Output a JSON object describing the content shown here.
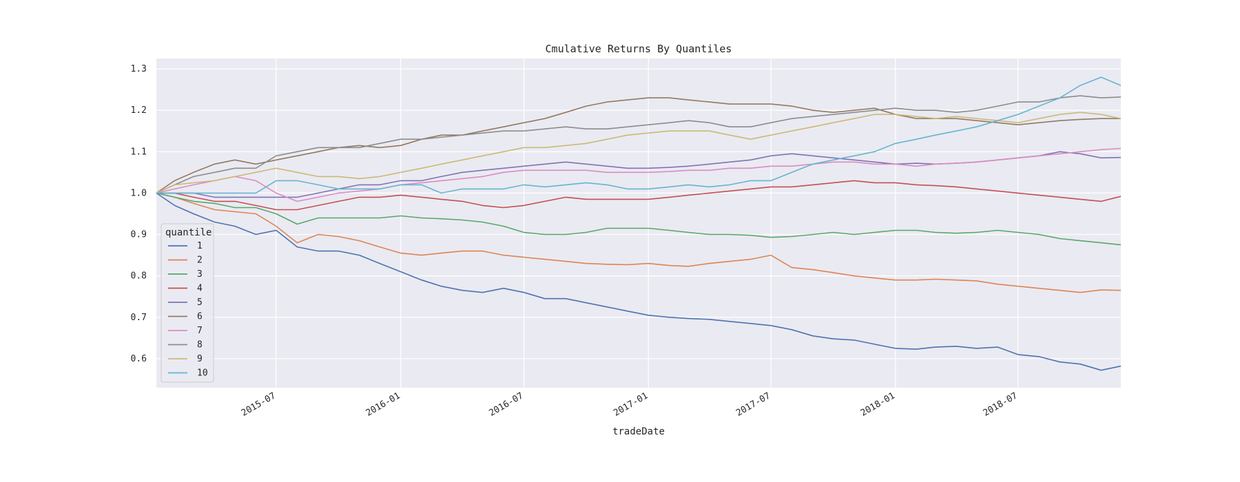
{
  "chart_data": {
    "type": "line",
    "title": "Cmulative Returns By Quantiles",
    "xlabel": "tradeDate",
    "ylabel": "",
    "ylim": [
      0.53,
      1.325
    ],
    "xlim": [
      "2015-01-05",
      "2018-11-30"
    ],
    "grid": true,
    "legend_title": "quantile",
    "legend_position": "lower-left",
    "x_ticks": [
      "2015-07",
      "2016-01",
      "2016-07",
      "2017-01",
      "2017-07",
      "2018-01",
      "2018-07"
    ],
    "y_ticks": [
      "0.6",
      "0.7",
      "0.8",
      "0.9",
      "1.0",
      "1.1",
      "1.2",
      "1.3"
    ],
    "x": [
      "2015-01-05",
      "2015-02-01",
      "2015-03-01",
      "2015-04-01",
      "2015-05-01",
      "2015-06-01",
      "2015-07-01",
      "2015-08-01",
      "2015-09-01",
      "2015-10-01",
      "2015-11-01",
      "2015-12-01",
      "2016-01-01",
      "2016-02-01",
      "2016-03-01",
      "2016-04-01",
      "2016-05-01",
      "2016-06-01",
      "2016-07-01",
      "2016-08-01",
      "2016-09-01",
      "2016-10-01",
      "2016-11-01",
      "2016-12-01",
      "2017-01-01",
      "2017-02-01",
      "2017-03-01",
      "2017-04-01",
      "2017-05-01",
      "2017-06-01",
      "2017-07-01",
      "2017-08-01",
      "2017-09-01",
      "2017-10-01",
      "2017-11-01",
      "2017-12-01",
      "2018-01-01",
      "2018-02-01",
      "2018-03-01",
      "2018-04-01",
      "2018-05-01",
      "2018-06-01",
      "2018-07-01",
      "2018-08-01",
      "2018-09-01",
      "2018-10-01",
      "2018-11-01",
      "2018-11-30"
    ],
    "series": [
      {
        "name": "1",
        "color": "#4c72b0",
        "values": [
          1.0,
          0.97,
          0.95,
          0.93,
          0.92,
          0.9,
          0.91,
          0.87,
          0.86,
          0.86,
          0.85,
          0.83,
          0.81,
          0.79,
          0.775,
          0.765,
          0.76,
          0.77,
          0.76,
          0.745,
          0.745,
          0.735,
          0.725,
          0.715,
          0.705,
          0.7,
          0.697,
          0.695,
          0.69,
          0.685,
          0.68,
          0.67,
          0.655,
          0.648,
          0.645,
          0.635,
          0.625,
          0.623,
          0.628,
          0.63,
          0.625,
          0.628,
          0.61,
          0.605,
          0.592,
          0.587,
          0.572,
          0.582
        ]
      },
      {
        "name": "2",
        "color": "#dd8452",
        "values": [
          1.0,
          0.99,
          0.975,
          0.96,
          0.955,
          0.95,
          0.92,
          0.88,
          0.9,
          0.895,
          0.885,
          0.87,
          0.855,
          0.85,
          0.855,
          0.86,
          0.86,
          0.85,
          0.845,
          0.84,
          0.835,
          0.83,
          0.828,
          0.827,
          0.83,
          0.825,
          0.823,
          0.83,
          0.835,
          0.84,
          0.85,
          0.82,
          0.815,
          0.808,
          0.8,
          0.795,
          0.79,
          0.79,
          0.792,
          0.79,
          0.788,
          0.78,
          0.775,
          0.77,
          0.765,
          0.76,
          0.766,
          0.765
        ]
      },
      {
        "name": "3",
        "color": "#55a868",
        "values": [
          1.0,
          0.99,
          0.98,
          0.975,
          0.965,
          0.965,
          0.95,
          0.925,
          0.94,
          0.94,
          0.94,
          0.94,
          0.945,
          0.94,
          0.938,
          0.935,
          0.93,
          0.92,
          0.905,
          0.9,
          0.9,
          0.905,
          0.915,
          0.915,
          0.915,
          0.91,
          0.905,
          0.9,
          0.9,
          0.898,
          0.893,
          0.895,
          0.9,
          0.905,
          0.9,
          0.905,
          0.91,
          0.91,
          0.905,
          0.903,
          0.905,
          0.91,
          0.905,
          0.9,
          0.89,
          0.885,
          0.88,
          0.875
        ]
      },
      {
        "name": "4",
        "color": "#c44e52",
        "values": [
          1.0,
          1.0,
          0.99,
          0.98,
          0.98,
          0.97,
          0.96,
          0.96,
          0.97,
          0.98,
          0.99,
          0.99,
          0.995,
          0.99,
          0.985,
          0.98,
          0.97,
          0.965,
          0.97,
          0.98,
          0.99,
          0.985,
          0.985,
          0.985,
          0.985,
          0.99,
          0.995,
          1.0,
          1.005,
          1.01,
          1.015,
          1.015,
          1.02,
          1.025,
          1.03,
          1.025,
          1.025,
          1.02,
          1.018,
          1.015,
          1.01,
          1.005,
          1.0,
          0.995,
          0.99,
          0.985,
          0.98,
          0.992
        ]
      },
      {
        "name": "5",
        "color": "#8172b3",
        "values": [
          1.0,
          1.0,
          1.0,
          0.99,
          0.99,
          0.99,
          0.99,
          0.99,
          1.0,
          1.01,
          1.02,
          1.02,
          1.03,
          1.03,
          1.04,
          1.05,
          1.055,
          1.06,
          1.065,
          1.07,
          1.075,
          1.07,
          1.065,
          1.06,
          1.06,
          1.062,
          1.065,
          1.07,
          1.075,
          1.08,
          1.09,
          1.095,
          1.09,
          1.085,
          1.08,
          1.075,
          1.07,
          1.072,
          1.07,
          1.072,
          1.075,
          1.08,
          1.085,
          1.09,
          1.1,
          1.095,
          1.085,
          1.086
        ]
      },
      {
        "name": "6",
        "color": "#937860",
        "values": [
          1.0,
          1.03,
          1.05,
          1.07,
          1.08,
          1.07,
          1.08,
          1.09,
          1.1,
          1.11,
          1.115,
          1.11,
          1.115,
          1.13,
          1.14,
          1.14,
          1.15,
          1.16,
          1.17,
          1.18,
          1.195,
          1.21,
          1.22,
          1.225,
          1.23,
          1.23,
          1.225,
          1.22,
          1.215,
          1.215,
          1.215,
          1.21,
          1.2,
          1.195,
          1.2,
          1.205,
          1.19,
          1.18,
          1.18,
          1.18,
          1.175,
          1.17,
          1.165,
          1.17,
          1.175,
          1.178,
          1.18,
          1.18
        ]
      },
      {
        "name": "7",
        "color": "#da8bc3",
        "values": [
          1.0,
          1.01,
          1.02,
          1.03,
          1.04,
          1.03,
          1.0,
          0.98,
          0.99,
          1.0,
          1.005,
          1.01,
          1.02,
          1.025,
          1.03,
          1.035,
          1.04,
          1.05,
          1.055,
          1.055,
          1.055,
          1.055,
          1.05,
          1.05,
          1.05,
          1.052,
          1.055,
          1.055,
          1.06,
          1.06,
          1.065,
          1.065,
          1.07,
          1.075,
          1.075,
          1.07,
          1.07,
          1.065,
          1.07,
          1.072,
          1.075,
          1.08,
          1.085,
          1.09,
          1.095,
          1.1,
          1.105,
          1.108
        ]
      },
      {
        "name": "8",
        "color": "#8c8c8c",
        "values": [
          1.0,
          1.02,
          1.04,
          1.05,
          1.06,
          1.06,
          1.09,
          1.1,
          1.11,
          1.11,
          1.11,
          1.12,
          1.13,
          1.13,
          1.135,
          1.14,
          1.145,
          1.15,
          1.15,
          1.155,
          1.16,
          1.155,
          1.155,
          1.16,
          1.165,
          1.17,
          1.175,
          1.17,
          1.16,
          1.16,
          1.17,
          1.18,
          1.185,
          1.19,
          1.195,
          1.2,
          1.205,
          1.2,
          1.2,
          1.195,
          1.2,
          1.21,
          1.22,
          1.22,
          1.23,
          1.235,
          1.23,
          1.232
        ]
      },
      {
        "name": "9",
        "color": "#ccb974",
        "values": [
          1.0,
          1.02,
          1.025,
          1.03,
          1.04,
          1.05,
          1.06,
          1.05,
          1.04,
          1.04,
          1.035,
          1.04,
          1.05,
          1.06,
          1.07,
          1.08,
          1.09,
          1.1,
          1.11,
          1.11,
          1.115,
          1.12,
          1.13,
          1.14,
          1.145,
          1.15,
          1.15,
          1.15,
          1.14,
          1.13,
          1.14,
          1.15,
          1.16,
          1.17,
          1.18,
          1.19,
          1.19,
          1.185,
          1.18,
          1.185,
          1.18,
          1.175,
          1.17,
          1.18,
          1.19,
          1.195,
          1.19,
          1.18
        ]
      },
      {
        "name": "10",
        "color": "#64b5cd",
        "values": [
          1.0,
          1.0,
          1.0,
          1.0,
          1.0,
          1.0,
          1.03,
          1.03,
          1.02,
          1.01,
          1.01,
          1.01,
          1.02,
          1.02,
          1.0,
          1.01,
          1.01,
          1.01,
          1.02,
          1.015,
          1.02,
          1.025,
          1.02,
          1.01,
          1.01,
          1.015,
          1.02,
          1.015,
          1.02,
          1.03,
          1.03,
          1.05,
          1.07,
          1.08,
          1.09,
          1.1,
          1.12,
          1.13,
          1.14,
          1.15,
          1.16,
          1.175,
          1.19,
          1.21,
          1.23,
          1.26,
          1.28,
          1.26
        ]
      }
    ]
  }
}
